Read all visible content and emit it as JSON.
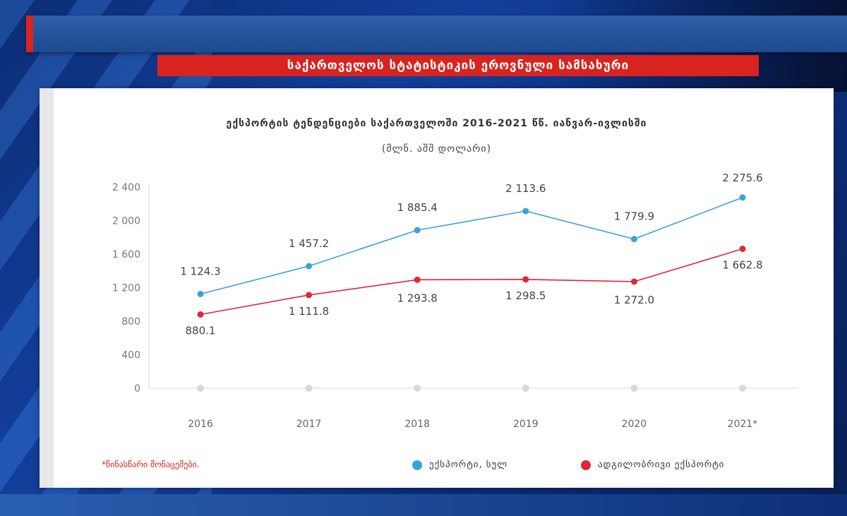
{
  "header": {
    "banner_title": "საქართველოს სტატისტიკის ეროვნული სამსახური"
  },
  "chart_data": {
    "type": "line",
    "title": "ექსპორტის ტენდენციები საქართველოში 2016-2021 წწ. იანვარ-ივლისში",
    "subtitle": "(მლნ. აშშ დოლარი)",
    "categories": [
      "2016",
      "2017",
      "2018",
      "2019",
      "2020",
      "2021*"
    ],
    "ylim": [
      0,
      2400
    ],
    "yticks": [
      0,
      400,
      800,
      1200,
      1600,
      2000,
      2400
    ],
    "ytick_labels": [
      "0",
      "400",
      "800",
      "1 200",
      "1 600",
      "2 000",
      "2 400"
    ],
    "grid": false,
    "legend_position": "bottom-right",
    "series": [
      {
        "name": "ექსპორტი, სულ",
        "color": "#3aa3d6",
        "values": [
          1124.3,
          1457.2,
          1885.4,
          2113.6,
          1779.9,
          2275.6
        ],
        "labels": [
          "1 124.3",
          "1 457.2",
          "1 885.4",
          "2 113.6",
          "1 779.9",
          "2 275.6"
        ]
      },
      {
        "name": "ადგილობრივი ექსპორტი",
        "color": "#e0263c",
        "values": [
          880.1,
          1111.8,
          1293.8,
          1298.5,
          1272.0,
          1662.8
        ],
        "labels": [
          "880.1",
          "1 111.8",
          "1 293.8",
          "1 298.5",
          "1 272.0",
          "1 662.8"
        ]
      }
    ],
    "footnote": "*წინასწარი მონაცემები."
  }
}
